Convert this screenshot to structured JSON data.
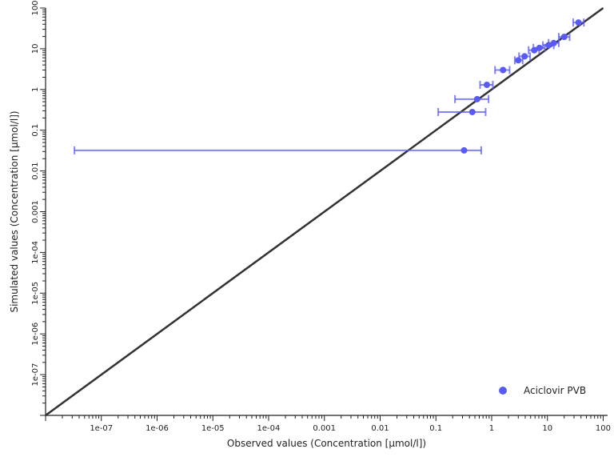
{
  "chart_data": {
    "type": "scatter",
    "title": "",
    "xlabel": "Observed values (Concentration [µmol/l])",
    "ylabel": "Simulated values (Concentration [µmol/l])",
    "x_scale": "log",
    "y_scale": "log",
    "xlim": [
      1e-08,
      120
    ],
    "ylim": [
      1e-08,
      100
    ],
    "x_ticks": [
      {
        "v": 1e-07,
        "label": "1e-07"
      },
      {
        "v": 1e-06,
        "label": "1e-06"
      },
      {
        "v": 1e-05,
        "label": "1e-05"
      },
      {
        "v": 0.0001,
        "label": "1e-04"
      },
      {
        "v": 0.001,
        "label": "0.001"
      },
      {
        "v": 0.01,
        "label": "0.01"
      },
      {
        "v": 0.1,
        "label": "0.1"
      },
      {
        "v": 1,
        "label": "1"
      },
      {
        "v": 10,
        "label": "10"
      },
      {
        "v": 100,
        "label": "100"
      }
    ],
    "y_ticks": [
      {
        "v": 1e-07,
        "label": "1e-07"
      },
      {
        "v": 1e-06,
        "label": "1e-06"
      },
      {
        "v": 1e-05,
        "label": "1e-05"
      },
      {
        "v": 0.0001,
        "label": "1e-04"
      },
      {
        "v": 0.001,
        "label": "0.001"
      },
      {
        "v": 0.01,
        "label": "0.01"
      },
      {
        "v": 0.1,
        "label": "0.1"
      },
      {
        "v": 1,
        "label": "1"
      },
      {
        "v": 10,
        "label": "10"
      },
      {
        "v": 100,
        "label": "100"
      }
    ],
    "grid": false,
    "identity_line": true,
    "legend_position": "bottom-right",
    "series": [
      {
        "name": "Aciclovir PVB",
        "color": "#5a5af5",
        "points": [
          {
            "x": 0.32,
            "y": 0.032,
            "xlo": 3.3e-08,
            "xhi": 0.65
          },
          {
            "x": 0.45,
            "y": 0.28,
            "xlo": 0.11,
            "xhi": 0.78
          },
          {
            "x": 0.55,
            "y": 0.58,
            "xlo": 0.22,
            "xhi": 0.88
          },
          {
            "x": 0.82,
            "y": 1.3,
            "xlo": 0.62,
            "xhi": 1.05
          },
          {
            "x": 1.6,
            "y": 3.0,
            "xlo": 1.15,
            "xhi": 2.1
          },
          {
            "x": 3.0,
            "y": 5.2,
            "xlo": 2.6,
            "xhi": 3.6
          },
          {
            "x": 3.9,
            "y": 6.5,
            "xlo": 3.1,
            "xhi": 4.9
          },
          {
            "x": 5.8,
            "y": 9.2,
            "xlo": 4.6,
            "xhi": 7.1
          },
          {
            "x": 7.2,
            "y": 10.5,
            "xlo": 5.6,
            "xhi": 9.0
          },
          {
            "x": 10.5,
            "y": 12.2,
            "xlo": 8.3,
            "xhi": 13.0
          },
          {
            "x": 13.0,
            "y": 13.8,
            "xlo": 10.5,
            "xhi": 16.0
          },
          {
            "x": 20.0,
            "y": 19.5,
            "xlo": 16.0,
            "xhi": 25.0
          },
          {
            "x": 36.0,
            "y": 44.0,
            "xlo": 29.0,
            "xhi": 45.0
          }
        ]
      }
    ]
  }
}
